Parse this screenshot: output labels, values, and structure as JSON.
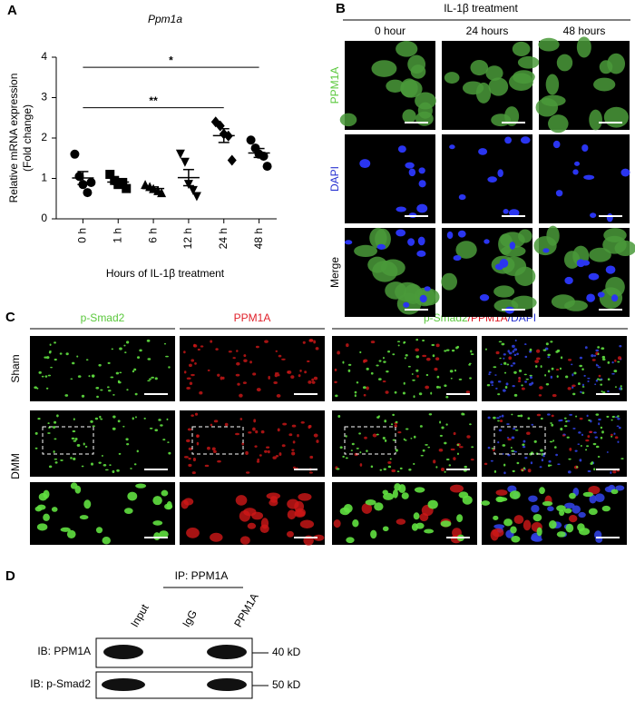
{
  "panel_a": {
    "letter": "A"
  },
  "chart_data": {
    "type": "dot-plot",
    "title": "Ppm1a",
    "y_label": [
      "Relative mRNA expression",
      "(Fold change)"
    ],
    "x_label": "Hours of IL-1β treatment",
    "categories": [
      "0 h",
      "1 h",
      "6 h",
      "12 h",
      "24 h",
      "48 h"
    ],
    "markers": [
      "circle",
      "square",
      "triangle-up",
      "triangle-down",
      "diamond",
      "circle"
    ],
    "color": "#000000",
    "points": [
      [
        1.6,
        1.05,
        0.85,
        0.65,
        0.9
      ],
      [
        1.1,
        0.95,
        0.85,
        0.9,
        0.75
      ],
      [
        0.85,
        0.8,
        0.75,
        0.7,
        0.65
      ],
      [
        1.6,
        1.4,
        0.85,
        0.7,
        0.55
      ],
      [
        2.4,
        2.3,
        2.1,
        2.05,
        1.45
      ],
      [
        1.95,
        1.75,
        1.6,
        1.55,
        1.3
      ]
    ],
    "means": [
      1.01,
      0.91,
      0.75,
      1.02,
      2.06,
      1.63
    ],
    "sems": [
      0.16,
      0.06,
      0.04,
      0.2,
      0.17,
      0.11
    ],
    "ylim": [
      0,
      4
    ],
    "yticks": [
      0,
      1,
      2,
      3,
      4
    ],
    "significance": [
      {
        "label": "*",
        "from": "0 h",
        "to": "48 h",
        "y": 3.75
      },
      {
        "label": "**",
        "from": "0 h",
        "to": "24 h",
        "y": 2.75
      }
    ]
  },
  "panel_b": {
    "letter": "B",
    "header": "IL-1β treatment",
    "columns": [
      "0 hour",
      "24 hours",
      "48 hours"
    ],
    "rows": [
      "PPM1A",
      "DAPI",
      "Merge"
    ]
  },
  "panel_c": {
    "letter": "C",
    "columns": [
      "p-Smad2",
      "PPM1A"
    ],
    "merge_header": [
      "p-Smad2",
      "/PPM1A",
      "/DAPI"
    ],
    "rows": [
      "Sham",
      "DMM"
    ]
  },
  "panel_d": {
    "letter": "D",
    "ip_label": "IP: PPM1A",
    "lanes": [
      "Input",
      "IgG",
      "PPM1A"
    ],
    "rows": [
      "IB: PPM1A",
      "IB: p-Smad2"
    ],
    "sizes": [
      "40 kD",
      "50 kD"
    ]
  }
}
